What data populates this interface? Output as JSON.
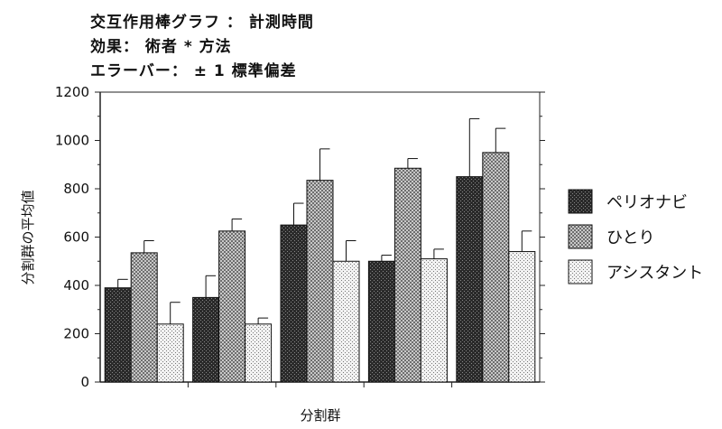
{
  "title_lines": [
    "交互作用棒グラフ ： 計測時間",
    "効果： 術者 * 方法",
    "エラーバー： ± 1 標準偏差"
  ],
  "colors": {
    "series_dark": "#3a3a3a",
    "series_medium": "#8c8c8c",
    "series_light": "#d6d6d6",
    "axis": "#222222"
  },
  "chart_data": {
    "type": "bar",
    "title": "交互作用棒グラフ ： 計測時間",
    "subtitle": [
      "効果： 術者 * 方法",
      "エラーバー： ± 1 標準偏差"
    ],
    "xlabel": "分割群",
    "ylabel": "分割群の平均値",
    "ylim": [
      0,
      1200
    ],
    "yticks": [
      "0",
      "200",
      "400",
      "600",
      "800",
      "1000",
      "1200"
    ],
    "categories": [
      "",
      "",
      "",
      "",
      ""
    ],
    "legend_position": "right",
    "grid": false,
    "series": [
      {
        "name": "ペリオナビ",
        "values": [
          390,
          350,
          650,
          500,
          850
        ],
        "error": [
          35,
          90,
          90,
          25,
          240
        ]
      },
      {
        "name": "ひとり",
        "values": [
          535,
          625,
          835,
          885,
          950
        ],
        "error": [
          50,
          50,
          130,
          40,
          100
        ]
      },
      {
        "name": "アシスタント",
        "values": [
          240,
          240,
          500,
          510,
          540
        ],
        "error": [
          90,
          25,
          85,
          40,
          85
        ]
      }
    ]
  }
}
